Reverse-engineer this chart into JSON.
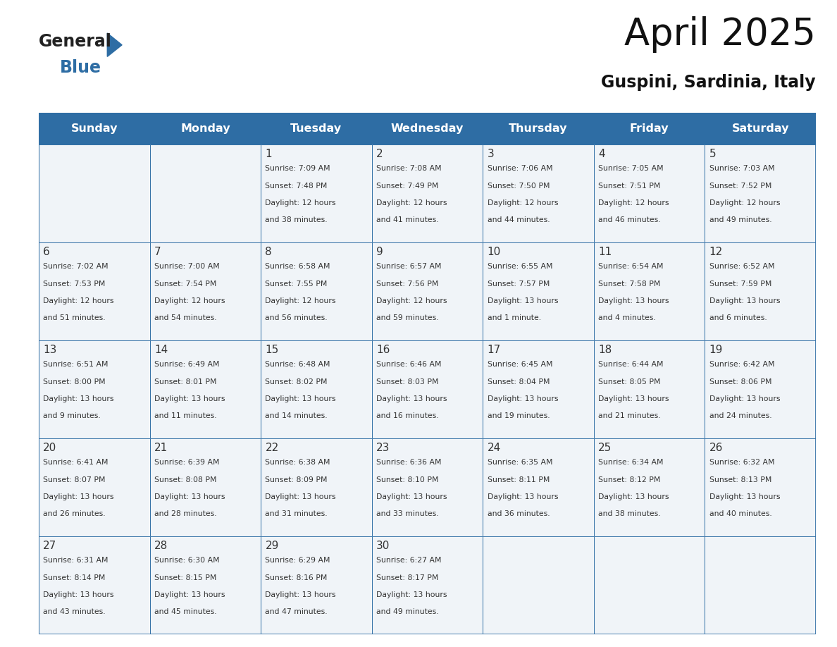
{
  "title": "April 2025",
  "subtitle": "Guspini, Sardinia, Italy",
  "header_bg": "#2E6DA4",
  "header_text_color": "#FFFFFF",
  "cell_bg": "#F0F4F8",
  "border_color": "#2E6DA4",
  "text_color": "#333333",
  "days_of_week": [
    "Sunday",
    "Monday",
    "Tuesday",
    "Wednesday",
    "Thursday",
    "Friday",
    "Saturday"
  ],
  "logo_general_color": "#222222",
  "logo_blue_color": "#2E6DA4",
  "calendar_data": [
    [
      {
        "day": "",
        "sunrise": "",
        "sunset": "",
        "daylight": ""
      },
      {
        "day": "",
        "sunrise": "",
        "sunset": "",
        "daylight": ""
      },
      {
        "day": "1",
        "sunrise": "7:09 AM",
        "sunset": "7:48 PM",
        "daylight": "12 hours\nand 38 minutes."
      },
      {
        "day": "2",
        "sunrise": "7:08 AM",
        "sunset": "7:49 PM",
        "daylight": "12 hours\nand 41 minutes."
      },
      {
        "day": "3",
        "sunrise": "7:06 AM",
        "sunset": "7:50 PM",
        "daylight": "12 hours\nand 44 minutes."
      },
      {
        "day": "4",
        "sunrise": "7:05 AM",
        "sunset": "7:51 PM",
        "daylight": "12 hours\nand 46 minutes."
      },
      {
        "day": "5",
        "sunrise": "7:03 AM",
        "sunset": "7:52 PM",
        "daylight": "12 hours\nand 49 minutes."
      }
    ],
    [
      {
        "day": "6",
        "sunrise": "7:02 AM",
        "sunset": "7:53 PM",
        "daylight": "12 hours\nand 51 minutes."
      },
      {
        "day": "7",
        "sunrise": "7:00 AM",
        "sunset": "7:54 PM",
        "daylight": "12 hours\nand 54 minutes."
      },
      {
        "day": "8",
        "sunrise": "6:58 AM",
        "sunset": "7:55 PM",
        "daylight": "12 hours\nand 56 minutes."
      },
      {
        "day": "9",
        "sunrise": "6:57 AM",
        "sunset": "7:56 PM",
        "daylight": "12 hours\nand 59 minutes."
      },
      {
        "day": "10",
        "sunrise": "6:55 AM",
        "sunset": "7:57 PM",
        "daylight": "13 hours\nand 1 minute."
      },
      {
        "day": "11",
        "sunrise": "6:54 AM",
        "sunset": "7:58 PM",
        "daylight": "13 hours\nand 4 minutes."
      },
      {
        "day": "12",
        "sunrise": "6:52 AM",
        "sunset": "7:59 PM",
        "daylight": "13 hours\nand 6 minutes."
      }
    ],
    [
      {
        "day": "13",
        "sunrise": "6:51 AM",
        "sunset": "8:00 PM",
        "daylight": "13 hours\nand 9 minutes."
      },
      {
        "day": "14",
        "sunrise": "6:49 AM",
        "sunset": "8:01 PM",
        "daylight": "13 hours\nand 11 minutes."
      },
      {
        "day": "15",
        "sunrise": "6:48 AM",
        "sunset": "8:02 PM",
        "daylight": "13 hours\nand 14 minutes."
      },
      {
        "day": "16",
        "sunrise": "6:46 AM",
        "sunset": "8:03 PM",
        "daylight": "13 hours\nand 16 minutes."
      },
      {
        "day": "17",
        "sunrise": "6:45 AM",
        "sunset": "8:04 PM",
        "daylight": "13 hours\nand 19 minutes."
      },
      {
        "day": "18",
        "sunrise": "6:44 AM",
        "sunset": "8:05 PM",
        "daylight": "13 hours\nand 21 minutes."
      },
      {
        "day": "19",
        "sunrise": "6:42 AM",
        "sunset": "8:06 PM",
        "daylight": "13 hours\nand 24 minutes."
      }
    ],
    [
      {
        "day": "20",
        "sunrise": "6:41 AM",
        "sunset": "8:07 PM",
        "daylight": "13 hours\nand 26 minutes."
      },
      {
        "day": "21",
        "sunrise": "6:39 AM",
        "sunset": "8:08 PM",
        "daylight": "13 hours\nand 28 minutes."
      },
      {
        "day": "22",
        "sunrise": "6:38 AM",
        "sunset": "8:09 PM",
        "daylight": "13 hours\nand 31 minutes."
      },
      {
        "day": "23",
        "sunrise": "6:36 AM",
        "sunset": "8:10 PM",
        "daylight": "13 hours\nand 33 minutes."
      },
      {
        "day": "24",
        "sunrise": "6:35 AM",
        "sunset": "8:11 PM",
        "daylight": "13 hours\nand 36 minutes."
      },
      {
        "day": "25",
        "sunrise": "6:34 AM",
        "sunset": "8:12 PM",
        "daylight": "13 hours\nand 38 minutes."
      },
      {
        "day": "26",
        "sunrise": "6:32 AM",
        "sunset": "8:13 PM",
        "daylight": "13 hours\nand 40 minutes."
      }
    ],
    [
      {
        "day": "27",
        "sunrise": "6:31 AM",
        "sunset": "8:14 PM",
        "daylight": "13 hours\nand 43 minutes."
      },
      {
        "day": "28",
        "sunrise": "6:30 AM",
        "sunset": "8:15 PM",
        "daylight": "13 hours\nand 45 minutes."
      },
      {
        "day": "29",
        "sunrise": "6:29 AM",
        "sunset": "8:16 PM",
        "daylight": "13 hours\nand 47 minutes."
      },
      {
        "day": "30",
        "sunrise": "6:27 AM",
        "sunset": "8:17 PM",
        "daylight": "13 hours\nand 49 minutes."
      },
      {
        "day": "",
        "sunrise": "",
        "sunset": "",
        "daylight": ""
      },
      {
        "day": "",
        "sunrise": "",
        "sunset": "",
        "daylight": ""
      },
      {
        "day": "",
        "sunrise": "",
        "sunset": "",
        "daylight": ""
      }
    ]
  ]
}
